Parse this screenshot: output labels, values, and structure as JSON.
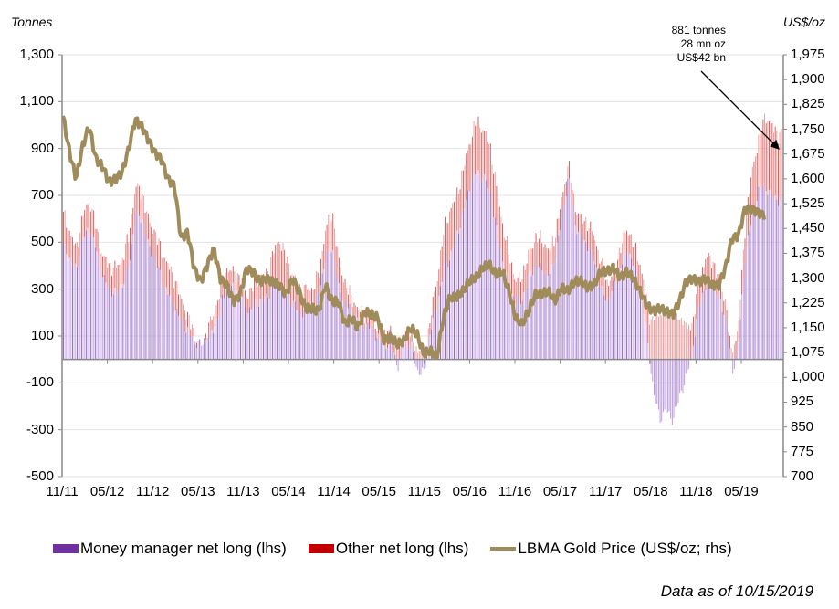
{
  "chart_data": {
    "type": "bar+line",
    "title": "",
    "left_axis": {
      "label": "Tonnes",
      "ylim": [
        -500,
        1300
      ],
      "ticks": [
        "1,300",
        "1,100",
        "900",
        "700",
        "500",
        "300",
        "100",
        "-100",
        "-300",
        "-500"
      ],
      "tick_values": [
        1300,
        1100,
        900,
        700,
        500,
        300,
        100,
        -100,
        -300,
        -500
      ]
    },
    "right_axis": {
      "label": "US$/oz",
      "ylim": [
        700,
        1975
      ],
      "ticks": [
        "1,975",
        "1,900",
        "1,825",
        "1,750",
        "1,675",
        "1,600",
        "1,525",
        "1,450",
        "1,375",
        "1,300",
        "1,225",
        "1,150",
        "1,075",
        "1,000",
        "925",
        "850",
        "775",
        "700"
      ],
      "tick_values": [
        1975,
        1900,
        1825,
        1750,
        1675,
        1600,
        1525,
        1450,
        1375,
        1300,
        1225,
        1150,
        1075,
        1000,
        925,
        850,
        775,
        700
      ]
    },
    "x_tick_labels": [
      "11/11",
      "05/12",
      "11/12",
      "05/13",
      "11/13",
      "05/14",
      "11/14",
      "05/15",
      "11/15",
      "05/16",
      "11/16",
      "05/17",
      "11/17",
      "05/18",
      "11/18",
      "05/19"
    ],
    "x_start": "11/2011",
    "x_end": "10/2019",
    "grid": true,
    "legend_position": "bottom",
    "series": [
      {
        "name": "Money manager net long (lhs)",
        "type": "bar",
        "axis": "left",
        "color": "#7030a0",
        "monthly_values": [
          480,
          430,
          380,
          520,
          560,
          470,
          350,
          300,
          280,
          320,
          400,
          620,
          600,
          480,
          430,
          340,
          280,
          220,
          160,
          120,
          80,
          60,
          100,
          130,
          240,
          310,
          300,
          290,
          200,
          230,
          250,
          260,
          330,
          330,
          280,
          240,
          200,
          210,
          220,
          280,
          440,
          480,
          300,
          240,
          200,
          170,
          150,
          130,
          90,
          70,
          60,
          -30,
          80,
          60,
          -50,
          -60,
          130,
          230,
          380,
          440,
          530,
          630,
          740,
          800,
          780,
          720,
          560,
          420,
          300,
          240,
          260,
          350,
          400,
          380,
          360,
          440,
          600,
          780,
          580,
          520,
          480,
          420,
          300,
          250,
          320,
          400,
          470,
          400,
          280,
          100,
          -150,
          -250,
          -220,
          -260,
          -150,
          -80,
          60,
          240,
          320,
          320,
          260,
          180,
          -60,
          80,
          460,
          600,
          720,
          740,
          700,
          680
        ]
      },
      {
        "name": "Other net long (lhs)",
        "type": "bar",
        "axis": "left",
        "color": "#c00000",
        "monthly_values": [
          140,
          110,
          90,
          100,
          120,
          90,
          90,
          100,
          110,
          110,
          130,
          120,
          110,
          110,
          110,
          120,
          120,
          120,
          90,
          60,
          30,
          -40,
          40,
          60,
          70,
          80,
          70,
          60,
          70,
          90,
          110,
          100,
          130,
          180,
          150,
          120,
          100,
          90,
          80,
          90,
          120,
          150,
          120,
          80,
          60,
          40,
          40,
          50,
          40,
          60,
          60,
          50,
          50,
          50,
          40,
          20,
          60,
          110,
          170,
          200,
          170,
          180,
          190,
          220,
          200,
          200,
          180,
          150,
          140,
          90,
          100,
          100,
          120,
          130,
          100,
          90,
          80,
          60,
          70,
          80,
          100,
          100,
          110,
          70,
          60,
          80,
          90,
          90,
          120,
          150,
          180,
          200,
          180,
          200,
          170,
          150,
          110,
          100,
          120,
          100,
          80,
          60,
          40,
          80,
          130,
          200,
          220,
          300,
          300,
          280,
          220,
          200
        ]
      },
      {
        "name": "LBMA Gold Price (US$/oz; rhs)",
        "type": "line",
        "axis": "right",
        "color": "#a08c5b",
        "monthly_values": [
          1790,
          1680,
          1600,
          1700,
          1760,
          1660,
          1640,
          1590,
          1600,
          1620,
          1690,
          1780,
          1760,
          1720,
          1680,
          1660,
          1600,
          1580,
          1420,
          1440,
          1330,
          1290,
          1340,
          1390,
          1300,
          1280,
          1230,
          1250,
          1330,
          1320,
          1290,
          1300,
          1290,
          1280,
          1250,
          1300,
          1260,
          1210,
          1210,
          1200,
          1280,
          1230,
          1230,
          1160,
          1180,
          1150,
          1200,
          1190,
          1180,
          1110,
          1120,
          1100,
          1110,
          1150,
          1130,
          1070,
          1080,
          1060,
          1180,
          1240,
          1240,
          1260,
          1290,
          1300,
          1330,
          1340,
          1310,
          1320,
          1260,
          1180,
          1160,
          1200,
          1250,
          1250,
          1260,
          1230,
          1270,
          1260,
          1290,
          1290,
          1270,
          1280,
          1320,
          1320,
          1330,
          1300,
          1320,
          1300,
          1260,
          1220,
          1200,
          1210,
          1200,
          1190,
          1230,
          1290,
          1300,
          1290,
          1300,
          1280,
          1280,
          1330,
          1420,
          1430,
          1510,
          1510,
          1500,
          1490
        ]
      }
    ],
    "annotation": {
      "lines": [
        "881 tonnes",
        "28 mn  oz",
        "US$42 bn"
      ]
    },
    "footnote": "Data as of 10/15/2019"
  },
  "legend": [
    {
      "label": "Money manager net long (lhs)",
      "color": "#7030a0"
    },
    {
      "label": "Other net long (lhs)",
      "color": "#c00000"
    },
    {
      "label": "LBMA Gold Price (US$/oz; rhs)",
      "color": "#a08c5b"
    }
  ]
}
